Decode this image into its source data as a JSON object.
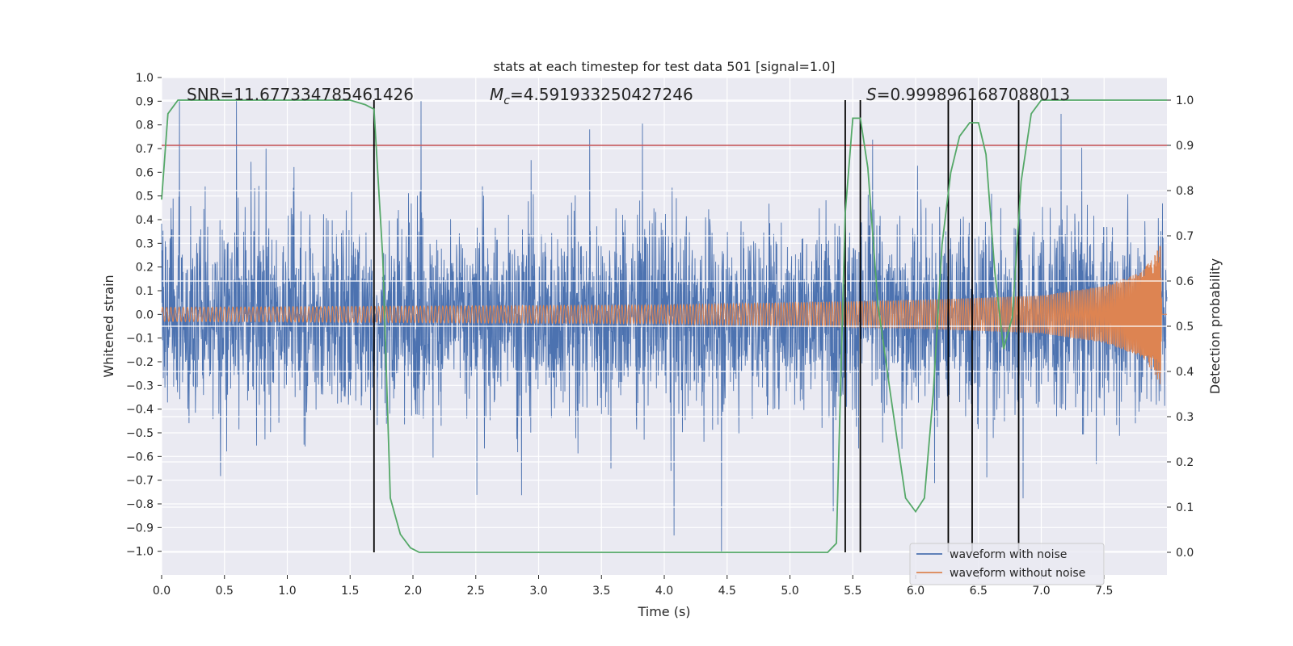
{
  "chart_data": {
    "type": "line",
    "title": "stats at each timestep for test data 501 [signal=1.0]",
    "xlabel": "Time (s)",
    "ylabel": "Whitened strain",
    "y2label": "Detection probability",
    "xlim": [
      0.0,
      8.0
    ],
    "ylim": [
      -1.1,
      1.0
    ],
    "y2lim": [
      -0.05,
      1.05
    ],
    "xticks": [
      0.0,
      0.5,
      1.0,
      1.5,
      2.0,
      2.5,
      3.0,
      3.5,
      4.0,
      4.5,
      5.0,
      5.5,
      6.0,
      6.5,
      7.0,
      7.5
    ],
    "xtick_labels": [
      "0.0",
      "0.5",
      "1.0",
      "1.5",
      "2.0",
      "2.5",
      "3.0",
      "3.5",
      "4.0",
      "4.5",
      "5.0",
      "5.5",
      "6.0",
      "6.5",
      "7.0",
      "7.5"
    ],
    "yticks": [
      1.0,
      0.9,
      0.8,
      0.7,
      0.6,
      0.5,
      0.4,
      0.3,
      0.2,
      0.1,
      0.0,
      -0.1,
      -0.2,
      -0.3,
      -0.4,
      -0.5,
      -0.6,
      -0.7,
      -0.8,
      -0.9,
      -1.0
    ],
    "ytick_labels": [
      "1.0",
      "0.9",
      "0.8",
      "0.7",
      "0.6",
      "0.5",
      "0.4",
      "0.3",
      "0.2",
      "0.1",
      "0.0",
      "−0.1",
      "−0.2",
      "−0.3",
      "−0.4",
      "−0.5",
      "−0.6",
      "−0.7",
      "−0.8",
      "−0.9",
      "−1.0"
    ],
    "y2ticks": [
      1.0,
      0.9,
      0.8,
      0.7,
      0.6,
      0.5,
      0.4,
      0.3,
      0.2,
      0.1,
      0.0
    ],
    "y2tick_labels": [
      "1.0",
      "0.9",
      "0.8",
      "0.7",
      "0.6",
      "0.5",
      "0.4",
      "0.3",
      "0.2",
      "0.1",
      "0.0"
    ],
    "annotations": {
      "snr": "SNR=11.677334785461426",
      "mc_symbol": "M",
      "mc_sub": "c",
      "mc_value": "=4.591933250427246",
      "s_symbol": "S",
      "s_value": "=0.9998961687088013"
    },
    "threshold": {
      "name": "detection threshold",
      "y2": 0.9,
      "color": "#c44e52"
    },
    "vertical_markers_x": [
      1.69,
      5.44,
      5.56,
      6.26,
      6.45,
      6.82
    ],
    "series": [
      {
        "name": "waveform with noise",
        "axis": "left",
        "color": "#4c72b0",
        "noise_sigma": 0.2,
        "peak_max": 0.9,
        "peak_min": -1.0
      },
      {
        "name": "waveform without noise",
        "axis": "left",
        "color": "#dd8452",
        "envelope": [
          [
            0.0,
            0.03
          ],
          [
            2.0,
            0.035
          ],
          [
            4.0,
            0.04
          ],
          [
            5.0,
            0.05
          ],
          [
            6.0,
            0.06
          ],
          [
            6.5,
            0.07
          ],
          [
            7.0,
            0.08
          ],
          [
            7.5,
            0.12
          ],
          [
            7.8,
            0.18
          ],
          [
            7.9,
            0.25
          ],
          [
            7.95,
            0.3
          ],
          [
            7.96,
            0.0
          ],
          [
            8.0,
            0.0
          ]
        ],
        "start_freq_hz": 30,
        "end_freq_hz": 200,
        "merger_time": 7.95
      },
      {
        "name": "detection probability",
        "axis": "right",
        "color": "#55a868",
        "x": [
          0.0,
          0.05,
          0.13,
          0.3,
          1.5,
          1.62,
          1.69,
          1.76,
          1.82,
          1.9,
          1.98,
          2.05,
          2.15,
          3.0,
          4.0,
          5.0,
          5.3,
          5.37,
          5.44,
          5.5,
          5.56,
          5.62,
          5.7,
          5.8,
          5.92,
          6.0,
          6.07,
          6.14,
          6.21,
          6.28,
          6.35,
          6.43,
          6.5,
          6.56,
          6.63,
          6.7,
          6.77,
          6.84,
          6.92,
          7.0,
          7.3,
          8.0
        ],
        "values": [
          0.78,
          0.97,
          1.0,
          1.0,
          1.0,
          0.99,
          0.98,
          0.65,
          0.12,
          0.04,
          0.01,
          0.0,
          0.0,
          0.0,
          0.0,
          0.0,
          0.0,
          0.02,
          0.75,
          0.96,
          0.96,
          0.85,
          0.55,
          0.35,
          0.12,
          0.09,
          0.12,
          0.35,
          0.68,
          0.84,
          0.92,
          0.95,
          0.95,
          0.88,
          0.62,
          0.45,
          0.52,
          0.82,
          0.97,
          1.0,
          1.0,
          1.0
        ]
      }
    ],
    "legend": {
      "placement": "lower-right",
      "entries": [
        "waveform with noise",
        "waveform without noise"
      ]
    }
  }
}
